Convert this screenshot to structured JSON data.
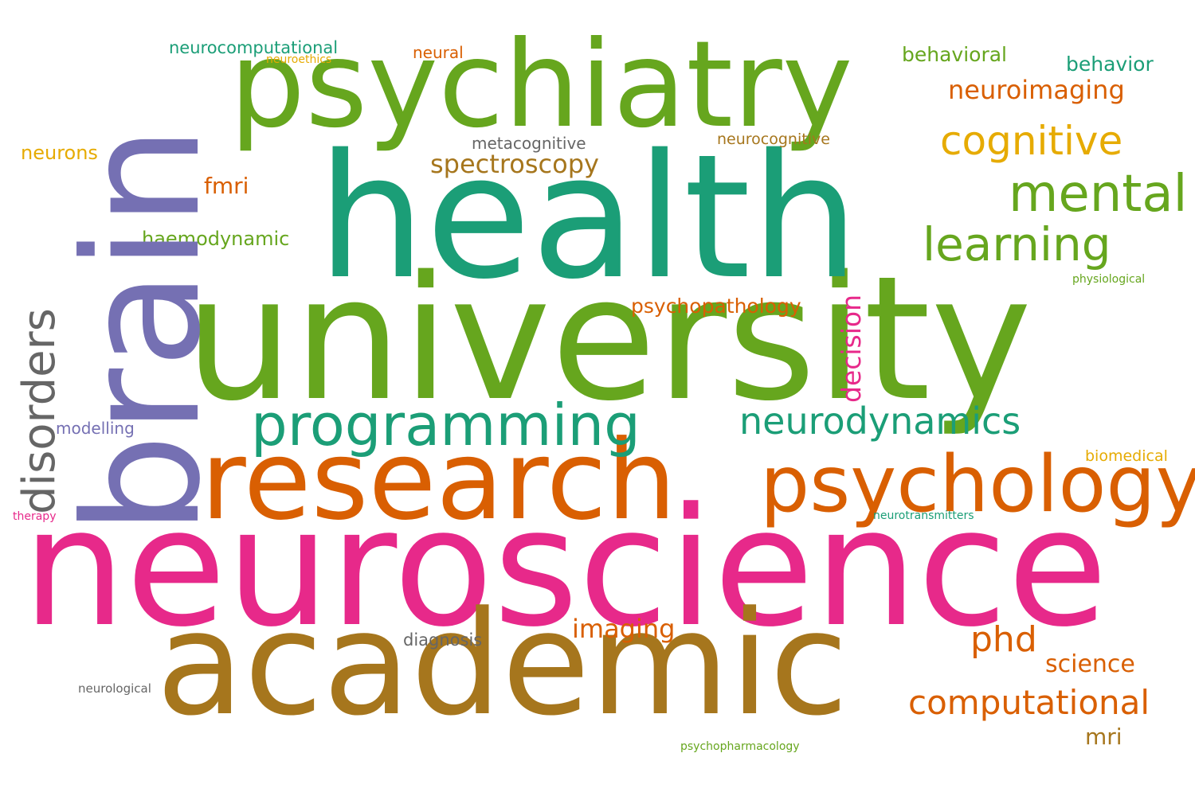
{
  "colors": {
    "background": "#ffffff",
    "teal": "#1b9e77",
    "orange": "#d95f02",
    "purple": "#7570b3",
    "pink": "#e7298a",
    "green": "#66a61e",
    "gold": "#e6ab02",
    "brown": "#a6761d",
    "gray": "#666666"
  },
  "words": {
    "neuroscience": "neuroscience",
    "university": "university",
    "health": "health",
    "brain": "brain",
    "academic": "academic",
    "psychiatry": "psychiatry",
    "research": "research",
    "psychology": "psychology",
    "programming": "programming",
    "neurodynamics": "neurodynamics",
    "mental": "mental",
    "learning": "learning",
    "cognitive": "cognitive",
    "computational": "computational",
    "phd": "phd",
    "disorders": "disorders",
    "spectroscopy": "spectroscopy",
    "neuroimaging": "neuroimaging",
    "imaging": "imaging",
    "science": "science",
    "decision": "decision",
    "psychopathology": "psychopathology",
    "fmri": "fmri",
    "mri": "mri",
    "behavioral": "behavioral",
    "behavior": "behavior",
    "haemodynamic": "haemodynamic",
    "neurons": "neurons",
    "neurocomputational": "neurocomputational",
    "neural": "neural",
    "metacognitive": "metacognitive",
    "neurocognitive": "neurocognitive",
    "diagnosis": "diagnosis",
    "modelling": "modelling",
    "biomedical": "biomedical",
    "neuroethics": "neuroethics",
    "physiological": "physiological",
    "neurotransmitters": "neurotransmitters",
    "therapy": "therapy",
    "neurological": "neurological",
    "psychopharmacology": "psychopharmacology"
  }
}
